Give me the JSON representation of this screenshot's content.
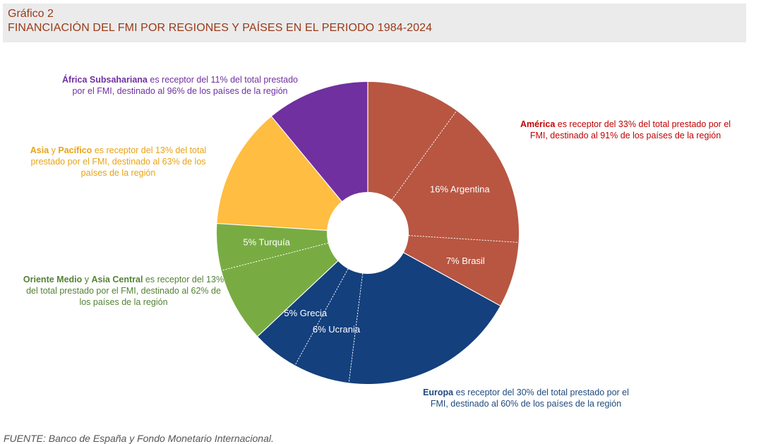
{
  "header": {
    "kicker": "Gráfico 2",
    "title": "FINANCIACIÓN DEL FMI POR REGIONES Y PAÍSES EN EL PERIODO 1984-2024"
  },
  "chart_data": {
    "type": "pie",
    "title": "FINANCIACIÓN DEL FMI POR REGIONES Y PAÍSES EN EL PERIODO 1984-2024",
    "donut": true,
    "regions": [
      {
        "name": "América",
        "value": 33,
        "color": "#b85642"
      },
      {
        "name": "Europa",
        "value": 30,
        "color": "#14407d"
      },
      {
        "name": "Oriente Medio y Asia Central",
        "value": 13,
        "color": "#78ac43"
      },
      {
        "name": "Asia y Pacífico",
        "value": 13,
        "color": "#ffbd41"
      },
      {
        "name": "África Subsahariana",
        "value": 11,
        "color": "#7030a0"
      }
    ],
    "segments": [
      {
        "region": "América",
        "value": 10,
        "label": ""
      },
      {
        "region": "América",
        "value": 16,
        "label": "16% Argentina"
      },
      {
        "region": "América",
        "value": 7,
        "label": "7% Brasil"
      },
      {
        "region": "Europa",
        "value": 19,
        "label": ""
      },
      {
        "region": "Europa",
        "value": 6,
        "label": "6% Ucrania"
      },
      {
        "region": "Europa",
        "value": 5,
        "label": "5% Grecia"
      },
      {
        "region": "Oriente Medio y Asia Central",
        "value": 8,
        "label": ""
      },
      {
        "region": "Oriente Medio y Asia Central",
        "value": 5,
        "label": "5% Turquía"
      },
      {
        "region": "Asia y Pacífico",
        "value": 13,
        "label": ""
      },
      {
        "region": "África Subsahariana",
        "value": 11,
        "label": ""
      }
    ]
  },
  "notes": {
    "africa": {
      "bold": "África Subsahariana",
      "text": " es receptor del 11% del total prestado por el FMI, destinado al 96% de los países de la región"
    },
    "asia": {
      "bold1": "Asia",
      "mid": " y ",
      "bold2": "Pacífico",
      "text": " es receptor del 13% del total prestado por el FMI, destinado al 63% de los países de la región"
    },
    "oriente": {
      "bold1": "Oriente Medio",
      "mid": " y ",
      "bold2": "Asia Central",
      "text": " es receptor del 13% del total prestado por el FMI, destinado al 62% de los países de la región"
    },
    "america": {
      "bold": "América",
      "text": " es receptor del 33% del total prestado por el FMI, destinado al 91% de los países de la región"
    },
    "europa": {
      "bold": "Europa",
      "text": " es receptor del 30% del total prestado por el FMI, destinado al 60% de los países de la región"
    }
  },
  "source": "FUENTE: Banco de España y Fondo Monetario Internacional."
}
